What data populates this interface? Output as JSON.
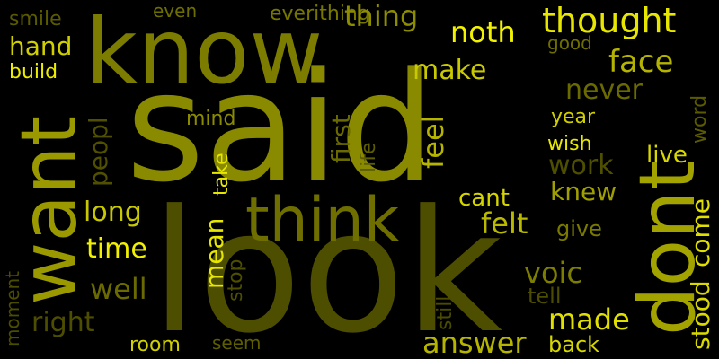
{
  "words": [
    {
      "text": "said",
      "color": "#8a8a00"
    },
    {
      "text": "look",
      "color": "#4e4e00"
    },
    {
      "text": "know",
      "color": "#7c7c00"
    },
    {
      "text": "think",
      "color": "#6f6f00"
    },
    {
      "text": "want",
      "color": "#9a9a00"
    },
    {
      "text": "dont",
      "color": "#a3a300"
    },
    {
      "text": "thought",
      "color": "#e6e600"
    },
    {
      "text": "noth",
      "color": "#f2f200"
    },
    {
      "text": "face",
      "color": "#b3b300"
    },
    {
      "text": "make",
      "color": "#c9c900"
    },
    {
      "text": "never",
      "color": "#6a6a00"
    },
    {
      "text": "year",
      "color": "#cfcf00"
    },
    {
      "text": "first",
      "color": "#6a6a00"
    },
    {
      "text": "feel",
      "color": "#b5b500"
    },
    {
      "text": "work",
      "color": "#4f4f00"
    },
    {
      "text": "knew",
      "color": "#9f9f00"
    },
    {
      "text": "felt",
      "color": "#b9b900"
    },
    {
      "text": "voic",
      "color": "#7d7d00"
    },
    {
      "text": "answer",
      "color": "#b5b500"
    },
    {
      "text": "made",
      "color": "#e0e000"
    },
    {
      "text": "back",
      "color": "#d6d600"
    },
    {
      "text": "right",
      "color": "#4e4e00"
    },
    {
      "text": "well",
      "color": "#6a6a00"
    },
    {
      "text": "time",
      "color": "#f0f000"
    },
    {
      "text": "long",
      "color": "#c8c800"
    },
    {
      "text": "peopl",
      "color": "#505000"
    },
    {
      "text": "hand",
      "color": "#d0d000"
    },
    {
      "text": "build",
      "color": "#ecec00"
    },
    {
      "text": "smile",
      "color": "#5a5a00"
    },
    {
      "text": "even",
      "color": "#6d6d00"
    },
    {
      "text": "everithing",
      "color": "#777700"
    },
    {
      "text": "thing",
      "color": "#8d8d00"
    },
    {
      "text": "good",
      "color": "#6f6f00"
    },
    {
      "text": "mind",
      "color": "#8b8b00"
    },
    {
      "text": "take",
      "color": "#e6e600"
    },
    {
      "text": "life",
      "color": "#5c5c00"
    },
    {
      "text": "wish",
      "color": "#e7e700"
    },
    {
      "text": "live",
      "color": "#d8d800"
    },
    {
      "text": "word",
      "color": "#5a5a00"
    },
    {
      "text": "cant",
      "color": "#d4d400"
    },
    {
      "text": "give",
      "color": "#7a7a00"
    },
    {
      "text": "come",
      "color": "#e0e000"
    },
    {
      "text": "stood",
      "color": "#d9d900"
    },
    {
      "text": "mean",
      "color": "#e6e600"
    },
    {
      "text": "stop",
      "color": "#4f4f00"
    },
    {
      "text": "still",
      "color": "#4b4b00"
    },
    {
      "text": "tell",
      "color": "#4d4d00"
    },
    {
      "text": "room",
      "color": "#d0d000"
    },
    {
      "text": "seem",
      "color": "#5e5e00"
    },
    {
      "text": "moment",
      "color": "#4d4d00"
    }
  ]
}
